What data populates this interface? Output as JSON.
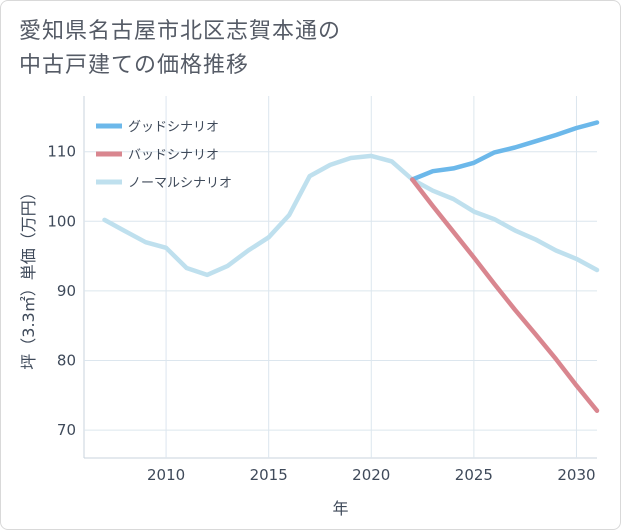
{
  "title_line1": "愛知県名古屋市北区志賀本通の",
  "title_line2": "中古戸建ての価格推移",
  "chart_data": {
    "type": "line",
    "xlabel": "年",
    "ylabel": "坪（3.3㎡）単価（万円）",
    "xlim": [
      2006,
      2031
    ],
    "ylim": [
      66,
      118
    ],
    "xticks": [
      2010,
      2015,
      2020,
      2025,
      2030
    ],
    "yticks": [
      70,
      80,
      90,
      100,
      110
    ],
    "grid": true,
    "legend_position": "top-left",
    "series": [
      {
        "name": "グッドシナリオ",
        "color": "#6cb8ea",
        "x": [
          2022,
          2023,
          2024,
          2025,
          2026,
          2027,
          2028,
          2029,
          2030,
          2031
        ],
        "y": [
          106.0,
          107.2,
          107.6,
          108.4,
          109.9,
          110.6,
          111.5,
          112.4,
          113.4,
          114.2
        ]
      },
      {
        "name": "バッドシナリオ",
        "color": "#d9868f",
        "x": [
          2022,
          2023,
          2024,
          2025,
          2026,
          2027,
          2028,
          2029,
          2030,
          2031
        ],
        "y": [
          106.0,
          102.2,
          98.5,
          94.8,
          91.0,
          87.3,
          83.8,
          80.2,
          76.4,
          72.8
        ]
      },
      {
        "name": "ノーマルシナリオ",
        "color": "#bfe0ee",
        "x": [
          2007,
          2008,
          2009,
          2010,
          2011,
          2012,
          2013,
          2014,
          2015,
          2016,
          2017,
          2018,
          2019,
          2020,
          2021,
          2022,
          2023,
          2024,
          2025,
          2026,
          2027,
          2028,
          2029,
          2030,
          2031
        ],
        "y": [
          100.2,
          98.6,
          97.0,
          96.2,
          93.3,
          92.3,
          93.6,
          95.8,
          97.7,
          100.9,
          106.5,
          108.1,
          109.1,
          109.4,
          108.6,
          106.0,
          104.4,
          103.2,
          101.4,
          100.3,
          98.7,
          97.4,
          95.8,
          94.6,
          93.0
        ]
      }
    ]
  }
}
